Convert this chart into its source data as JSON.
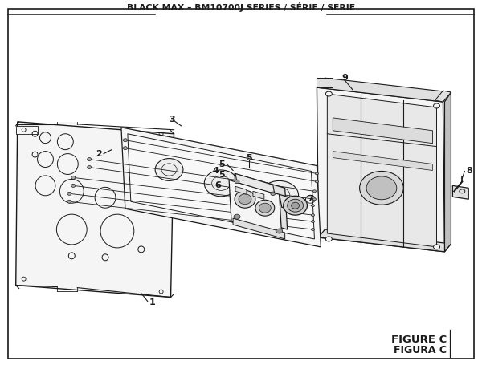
{
  "title": "BLACK MAX – BM10700J SERIES / SÉRIE / SERIE",
  "figure_label_1": "FIGURE C",
  "figure_label_2": "FIGURA C",
  "bg_color": "#ffffff",
  "lc": "#1a1a1a",
  "fill_light": "#f5f5f5",
  "fill_mid": "#e0e0e0",
  "fill_dark": "#c0c0c0",
  "title_fontsize": 7.8,
  "label_fontsize": 8.0,
  "fig_label_fontsize": 9.5
}
